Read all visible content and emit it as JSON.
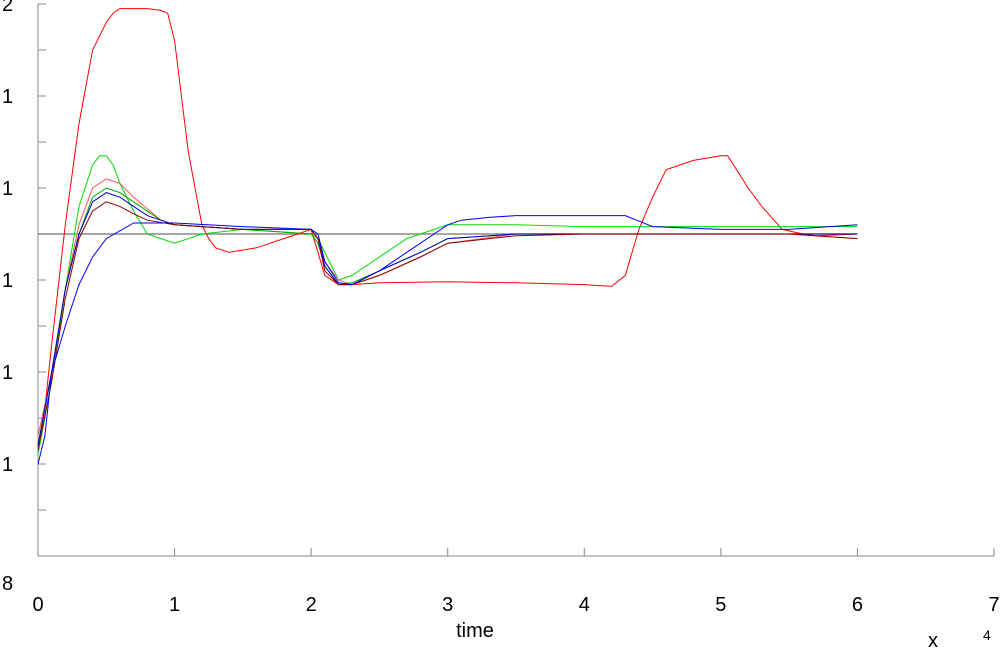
{
  "chart_data": {
    "type": "line",
    "title": "",
    "xlabel": "time",
    "ylabel": "",
    "x_exponent_label": "x",
    "x_exponent": "4",
    "y_corner_label": "8",
    "xlim": [
      0,
      7
    ],
    "ylim": [
      0,
      6
    ],
    "xticks": [
      "0",
      "1",
      "2",
      "3",
      "4",
      "5",
      "6",
      "7"
    ],
    "yticks_values": [
      1,
      2,
      3,
      4,
      5,
      6
    ],
    "yticks_labels": [
      "1",
      "1",
      "1",
      "1",
      "1",
      "2"
    ],
    "grid": false,
    "reference_line": {
      "x": [
        0,
        6
      ],
      "y": 3.5,
      "color": "#888888"
    },
    "series": [
      {
        "color": "#ff0000",
        "x": [
          0,
          0.05,
          0.1,
          0.2,
          0.3,
          0.4,
          0.5,
          0.55,
          0.6,
          0.7,
          0.8,
          0.9,
          0.95,
          1.0,
          1.05,
          1.1,
          1.2,
          1.25,
          1.3,
          1.4,
          1.6,
          1.8,
          2.0,
          2.1,
          2.2,
          2.3,
          2.5,
          3.0,
          3.5,
          4.0,
          4.2,
          4.3,
          4.35,
          4.4,
          4.5,
          4.6,
          4.8,
          5.0,
          5.05,
          5.2,
          5.3,
          5.45,
          5.6,
          5.7,
          6.0
        ],
        "y": [
          1.2,
          1.6,
          2.3,
          3.6,
          4.7,
          5.5,
          5.8,
          5.9,
          5.95,
          5.95,
          5.95,
          5.93,
          5.9,
          5.6,
          5.0,
          4.4,
          3.6,
          3.45,
          3.35,
          3.3,
          3.35,
          3.45,
          3.55,
          3.05,
          2.95,
          2.95,
          2.97,
          2.98,
          2.97,
          2.95,
          2.93,
          3.05,
          3.3,
          3.55,
          3.9,
          4.2,
          4.3,
          4.35,
          4.35,
          4.0,
          3.8,
          3.55,
          3.5,
          3.48,
          3.5
        ]
      },
      {
        "color": "#00dd00",
        "x": [
          0,
          0.1,
          0.2,
          0.3,
          0.4,
          0.45,
          0.5,
          0.55,
          0.6,
          0.7,
          0.8,
          0.9,
          1.0,
          1.2,
          1.5,
          2.0,
          2.05,
          2.1,
          2.2,
          2.3,
          2.5,
          2.7,
          2.9,
          3.0,
          3.5,
          4.0,
          4.5,
          5.0,
          5.5,
          6.0
        ],
        "y": [
          1.1,
          1.9,
          2.9,
          3.8,
          4.25,
          4.35,
          4.35,
          4.25,
          4.05,
          3.75,
          3.5,
          3.45,
          3.4,
          3.5,
          3.55,
          3.5,
          3.45,
          3.3,
          3.0,
          3.05,
          3.25,
          3.45,
          3.55,
          3.6,
          3.6,
          3.58,
          3.58,
          3.58,
          3.58,
          3.58
        ]
      },
      {
        "color": "#ff5555",
        "x": [
          0,
          0.1,
          0.2,
          0.3,
          0.4,
          0.5,
          0.6,
          0.7,
          0.9,
          1.0,
          1.5,
          2.0,
          2.05,
          2.1,
          2.2,
          2.3,
          2.5,
          2.8,
          3.0,
          3.5,
          4.0,
          4.5,
          5.0,
          5.5,
          6.0
        ],
        "y": [
          1.3,
          2.0,
          2.9,
          3.6,
          4.0,
          4.1,
          4.05,
          3.9,
          3.65,
          3.6,
          3.55,
          3.55,
          3.45,
          3.2,
          3.0,
          2.95,
          3.05,
          3.25,
          3.4,
          3.5,
          3.5,
          3.5,
          3.5,
          3.5,
          3.45
        ]
      },
      {
        "color": "#00aa00",
        "x": [
          0,
          0.1,
          0.2,
          0.3,
          0.4,
          0.5,
          0.6,
          0.7,
          0.9,
          1.0,
          1.5,
          2.0,
          2.05,
          2.1,
          2.2,
          2.3,
          2.5,
          2.8,
          3.0,
          3.5,
          4.0,
          4.5,
          5.0,
          5.5,
          6.0
        ],
        "y": [
          1.2,
          2.0,
          2.9,
          3.5,
          3.9,
          4.0,
          3.95,
          3.85,
          3.65,
          3.6,
          3.55,
          3.5,
          3.4,
          3.15,
          2.95,
          2.97,
          3.1,
          3.3,
          3.45,
          3.5,
          3.5,
          3.5,
          3.5,
          3.5,
          3.5
        ]
      },
      {
        "color": "#0000cc",
        "x": [
          0,
          0.1,
          0.2,
          0.3,
          0.4,
          0.5,
          0.6,
          0.7,
          0.8,
          1.0,
          1.5,
          2.0,
          2.05,
          2.1,
          2.2,
          2.3,
          2.5,
          2.8,
          3.0,
          3.5,
          4.0,
          4.5,
          5.0,
          5.5,
          6.0
        ],
        "y": [
          1.2,
          2.0,
          2.9,
          3.5,
          3.85,
          3.95,
          3.9,
          3.8,
          3.7,
          3.6,
          3.55,
          3.55,
          3.45,
          3.15,
          2.95,
          2.95,
          3.1,
          3.3,
          3.45,
          3.5,
          3.5,
          3.5,
          3.5,
          3.5,
          3.5
        ]
      },
      {
        "color": "#880000",
        "x": [
          0,
          0.1,
          0.2,
          0.3,
          0.4,
          0.5,
          0.6,
          0.7,
          0.8,
          1.0,
          1.5,
          2.0,
          2.05,
          2.1,
          2.2,
          2.3,
          2.5,
          2.8,
          3.0,
          3.5,
          4.0,
          4.5,
          5.0,
          5.5,
          6.0
        ],
        "y": [
          1.15,
          1.9,
          2.8,
          3.45,
          3.75,
          3.85,
          3.8,
          3.72,
          3.65,
          3.6,
          3.55,
          3.55,
          3.45,
          3.1,
          2.95,
          2.95,
          3.05,
          3.25,
          3.4,
          3.48,
          3.5,
          3.5,
          3.5,
          3.5,
          3.45
        ]
      },
      {
        "color": "#0000ff",
        "x": [
          0,
          0.05,
          0.1,
          0.2,
          0.3,
          0.4,
          0.5,
          0.7,
          1.0,
          1.5,
          2.0,
          2.05,
          2.1,
          2.2,
          2.3,
          2.5,
          2.7,
          2.9,
          3.0,
          3.1,
          3.3,
          3.5,
          4.0,
          4.3,
          4.5,
          5.0,
          5.5,
          6.0
        ],
        "y": [
          1.0,
          1.3,
          2.0,
          2.5,
          2.95,
          3.25,
          3.45,
          3.62,
          3.62,
          3.58,
          3.55,
          3.5,
          3.2,
          2.97,
          2.95,
          3.1,
          3.3,
          3.5,
          3.6,
          3.65,
          3.68,
          3.7,
          3.7,
          3.7,
          3.58,
          3.55,
          3.55,
          3.6
        ]
      }
    ]
  }
}
